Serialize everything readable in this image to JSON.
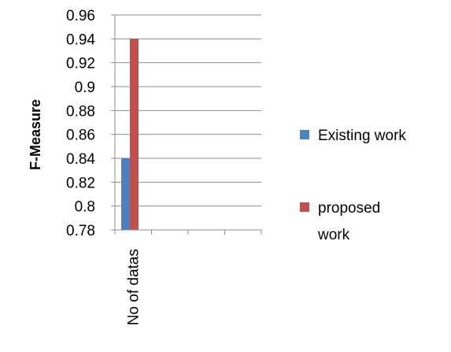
{
  "chart_data": {
    "type": "bar",
    "categories": [
      "No of datas",
      "",
      "",
      ""
    ],
    "series": [
      {
        "name": "Existing work",
        "values": [
          0.84,
          null,
          null,
          null
        ],
        "color": "#4F81BD"
      },
      {
        "name": "proposed work",
        "values": [
          0.94,
          null,
          null,
          null
        ],
        "color": "#C0504D"
      }
    ],
    "ylabel": "F-Measure",
    "xlabel": "",
    "ylim": [
      0.78,
      0.96
    ],
    "yticks": [
      "0.96",
      "0.94",
      "0.92",
      "0.9",
      "0.88",
      "0.86",
      "0.84",
      "0.82",
      "0.8",
      "0.78"
    ],
    "grid": true,
    "legend_position": "right",
    "legend": [
      {
        "lines": [
          "Existing work"
        ]
      },
      {
        "lines": [
          "proposed",
          "work"
        ]
      }
    ]
  }
}
